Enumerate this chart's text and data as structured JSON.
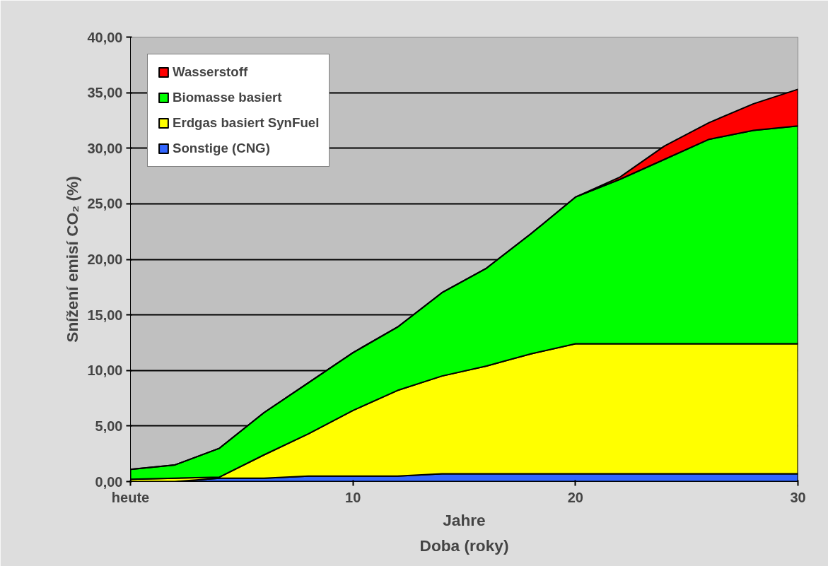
{
  "chart_data": {
    "type": "area",
    "stacked": true,
    "xlabel": "Jahre",
    "ylabel": "Snížení emisí CO₂ (%)",
    "annotations": [
      "Doba (roky)"
    ],
    "x": [
      0,
      2,
      4,
      6,
      8,
      10,
      12,
      14,
      16,
      18,
      20,
      22,
      24,
      26,
      28,
      30
    ],
    "xlim": [
      0,
      30
    ],
    "xticks": [
      {
        "value": 0,
        "label": "heute"
      },
      10,
      20,
      30
    ],
    "ylim": [
      0,
      40
    ],
    "yticks": [
      {
        "value": 0,
        "label": "0,00"
      },
      {
        "value": 5,
        "label": "5,00"
      },
      {
        "value": 10,
        "label": "10,00"
      },
      {
        "value": 15,
        "label": "15,00"
      },
      {
        "value": 20,
        "label": "20,00"
      },
      {
        "value": 25,
        "label": "25,00"
      },
      {
        "value": 30,
        "label": "30,00"
      },
      {
        "value": 35,
        "label": "35,00"
      },
      {
        "value": 40,
        "label": "40,00"
      }
    ],
    "grid": "y",
    "legend": "top left",
    "series": [
      {
        "name": "Sonstige (CNG)",
        "color": "#3366ff",
        "values": [
          0,
          0,
          0.3,
          0.3,
          0.5,
          0.5,
          0.5,
          0.7,
          0.7,
          0.7,
          0.7,
          0.7,
          0.7,
          0.7,
          0.7,
          0.7
        ]
      },
      {
        "name": "Erdgas basiert SynFuel",
        "color": "#ffff00",
        "values": [
          0.2,
          0.3,
          0.1,
          2.1,
          3.8,
          5.9,
          7.7,
          8.8,
          9.7,
          10.8,
          11.7,
          11.7,
          11.7,
          11.7,
          11.7,
          11.7
        ]
      },
      {
        "name": "Biomasse basiert",
        "color": "#00ff00",
        "values": [
          0.9,
          1.2,
          2.6,
          3.8,
          4.6,
          5.2,
          5.7,
          7.5,
          8.8,
          10.8,
          13.2,
          14.8,
          16.6,
          18.4,
          19.2,
          19.6
        ]
      },
      {
        "name": "Wasserstoff",
        "color": "#ff0000",
        "values": [
          0,
          0,
          0,
          0,
          0,
          0,
          0,
          0,
          0,
          0,
          0,
          0.2,
          1.2,
          1.5,
          2.4,
          3.3
        ]
      }
    ]
  }
}
